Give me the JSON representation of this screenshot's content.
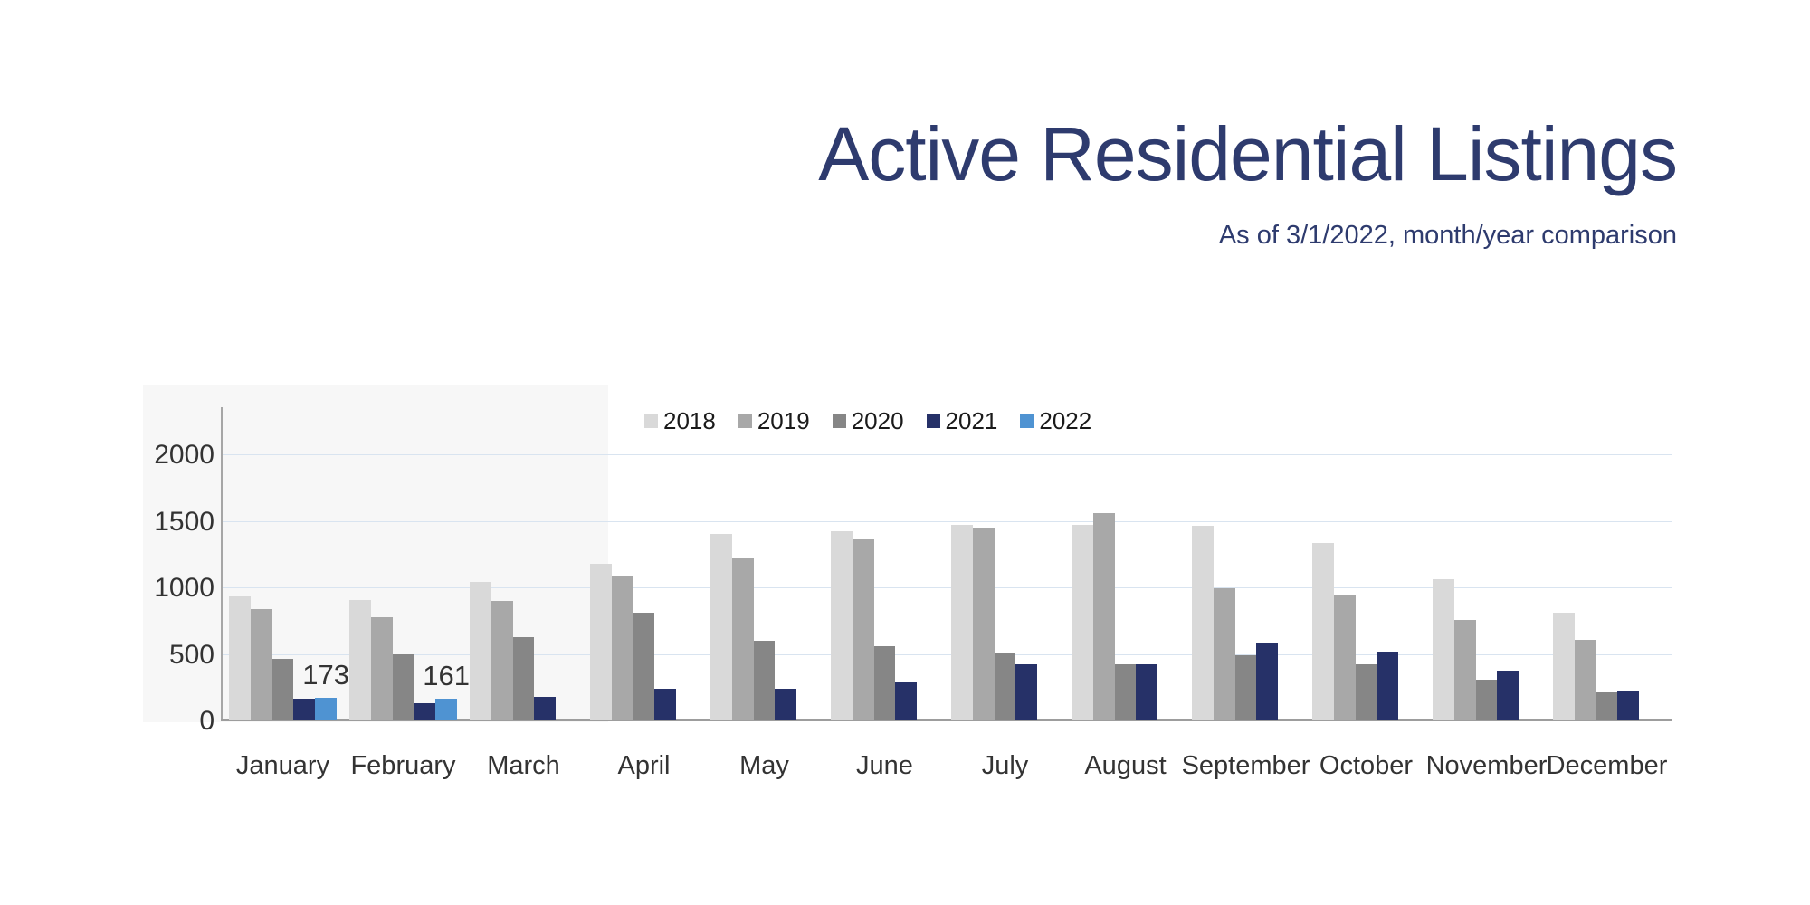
{
  "page": {
    "title": "Active Residential Listings",
    "subtitle": "As of 3/1/2022, month/year comparison",
    "title_color": "#2e3b6e"
  },
  "chart_data": {
    "type": "bar",
    "title": "Active Residential Listings",
    "subtitle": "As of 3/1/2022, month/year comparison",
    "categories": [
      "January",
      "February",
      "March",
      "April",
      "May",
      "June",
      "July",
      "August",
      "September",
      "October",
      "November",
      "December"
    ],
    "series": [
      {
        "name": "2018",
        "color": "#d9d9d9",
        "values": [
          935,
          905,
          1040,
          1175,
          1400,
          1425,
          1470,
          1470,
          1465,
          1330,
          1060,
          810
        ]
      },
      {
        "name": "2019",
        "color": "#a8a8a8",
        "values": [
          840,
          775,
          900,
          1085,
          1215,
          1360,
          1450,
          1560,
          990,
          945,
          755,
          605
        ]
      },
      {
        "name": "2020",
        "color": "#868686",
        "values": [
          460,
          500,
          625,
          810,
          600,
          560,
          510,
          420,
          490,
          420,
          305,
          210
        ]
      },
      {
        "name": "2021",
        "color": "#263168",
        "values": [
          160,
          130,
          175,
          240,
          240,
          285,
          425,
          425,
          580,
          515,
          375,
          215
        ]
      },
      {
        "name": "2022",
        "color": "#4f93d2",
        "values": [
          173,
          161,
          null,
          null,
          null,
          null,
          null,
          null,
          null,
          null,
          null,
          null
        ],
        "data_labels": true
      }
    ],
    "data_label_values": [
      "173",
      "161"
    ],
    "y_ticks": [
      0,
      500,
      1000,
      1500,
      2000
    ],
    "ylim": [
      0,
      2350
    ],
    "grid": true,
    "legend_position": "top-center",
    "xlabel": "",
    "ylabel": ""
  }
}
